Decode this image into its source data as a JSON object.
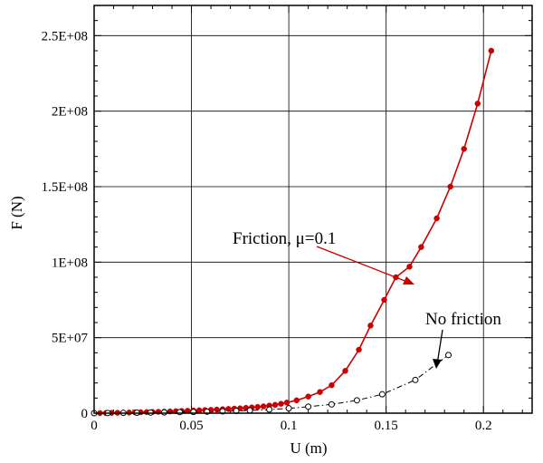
{
  "chart_data": {
    "type": "line",
    "title": "",
    "xlabel": "U (m)",
    "ylabel": "F (N)",
    "xlim": [
      0,
      0.225
    ],
    "ylim": [
      0,
      270000000
    ],
    "x_ticks": [
      0,
      0.05,
      0.1,
      0.15,
      0.2
    ],
    "x_tick_labels": [
      "0",
      "0.05",
      "0.1",
      "0.15",
      "0.2"
    ],
    "y_ticks": [
      0,
      50000000,
      100000000,
      150000000,
      200000000,
      250000000
    ],
    "y_tick_labels": [
      "0",
      "5E+07",
      "1E+08",
      "1.5E+08",
      "2E+08",
      "2.5E+08"
    ],
    "grid": true,
    "series": [
      {
        "name": "Friction, μ=0.1",
        "color": "#cc0000",
        "marker": "filled-circle",
        "line_style": "solid",
        "x": [
          0.0,
          0.003,
          0.006,
          0.009,
          0.012,
          0.015,
          0.018,
          0.021,
          0.024,
          0.027,
          0.03,
          0.033,
          0.036,
          0.039,
          0.042,
          0.045,
          0.048,
          0.051,
          0.054,
          0.057,
          0.06,
          0.063,
          0.066,
          0.069,
          0.072,
          0.075,
          0.078,
          0.081,
          0.084,
          0.087,
          0.09,
          0.093,
          0.096,
          0.099,
          0.104,
          0.11,
          0.116,
          0.122,
          0.129,
          0.136,
          0.142,
          0.149,
          0.155,
          0.162,
          0.168,
          0.176,
          0.183,
          0.19,
          0.197,
          0.204
        ],
        "y": [
          0,
          50000,
          100000,
          200000,
          250000,
          300000,
          400000,
          500000,
          600000,
          700000,
          800000,
          900000,
          1000000,
          1150000,
          1300000,
          1450000,
          1600000,
          1750000,
          1900000,
          2050000,
          2200000,
          2400000,
          2600000,
          2800000,
          3000000,
          3200000,
          3500000,
          3800000,
          4100000,
          4500000,
          5000000,
          5500000,
          6200000,
          7000000,
          8500000,
          11000000,
          14000000,
          18500000,
          28000000,
          42000000,
          58000000,
          75000000,
          90000000,
          97000000,
          110000000,
          129000000,
          150000000,
          175000000,
          205000000,
          240000000
        ]
      },
      {
        "name": "No friction",
        "color": "#000000",
        "marker": "open-circle",
        "line_style": "dash-dot",
        "x": [
          0.0,
          0.007,
          0.015,
          0.022,
          0.029,
          0.036,
          0.044,
          0.051,
          0.058,
          0.066,
          0.073,
          0.08,
          0.09,
          0.1,
          0.11,
          0.122,
          0.135,
          0.148,
          0.165,
          0.182
        ],
        "y": [
          0,
          100000,
          200000,
          300000,
          400000,
          500000,
          700000,
          800000,
          1000000,
          1200000,
          1500000,
          1800000,
          2400000,
          3200000,
          4300000,
          5800000,
          8500000,
          12500000,
          22000000,
          38500000
        ]
      }
    ],
    "annotations": [
      {
        "text": "Friction, μ=0.1",
        "color": "#cc0000",
        "points_to_series": 0
      },
      {
        "text": "No friction",
        "color": "#000000",
        "points_to_series": 1
      }
    ]
  }
}
